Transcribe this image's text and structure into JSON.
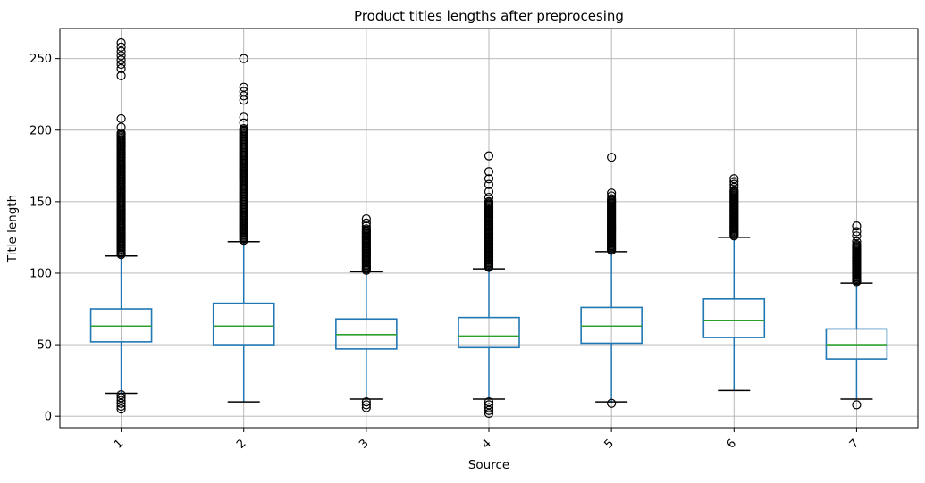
{
  "chart_data": {
    "type": "boxplot",
    "title": "Product titles lengths after preprocesing",
    "xlabel": "Source",
    "ylabel": "Title length",
    "categories": [
      "1",
      "2",
      "3",
      "4",
      "5",
      "6",
      "7"
    ],
    "yticks": [
      0,
      50,
      100,
      150,
      200,
      250
    ],
    "ylim": [
      -8,
      271
    ],
    "grid": true,
    "legend": "none",
    "colors": {
      "box": "#1f77b4",
      "whisker": "#1f77b4",
      "median": "#2ca02c",
      "cap": "#000000",
      "flier": "#000000",
      "grid": "#b0b0b0",
      "frame": "#000000",
      "background": "#ffffff"
    },
    "boxes": [
      {
        "source": "1",
        "whisker_low": 16,
        "q1": 52,
        "median": 63,
        "q3": 75,
        "whisker_high": 112,
        "outliers_above_dense": {
          "min": 113,
          "max": 198,
          "count": 90
        },
        "outliers_above": [
          202,
          208,
          238,
          243,
          246,
          249,
          252,
          255,
          258,
          261
        ],
        "outliers_below": [
          5,
          7,
          9,
          11,
          13,
          15
        ]
      },
      {
        "source": "2",
        "whisker_low": 10,
        "q1": 50,
        "median": 63,
        "q3": 79,
        "whisker_high": 122,
        "outliers_above_dense": {
          "min": 123,
          "max": 201,
          "count": 85
        },
        "outliers_above": [
          205,
          209,
          221,
          224,
          227,
          230,
          250
        ],
        "outliers_below": []
      },
      {
        "source": "3",
        "whisker_low": 12,
        "q1": 47,
        "median": 57,
        "q3": 68,
        "whisker_high": 101,
        "outliers_above_dense": {
          "min": 102,
          "max": 131,
          "count": 35
        },
        "outliers_above": [
          133,
          135,
          138
        ],
        "outliers_below": [
          6,
          8,
          10
        ]
      },
      {
        "source": "4",
        "whisker_low": 12,
        "q1": 48,
        "median": 56,
        "q3": 69,
        "whisker_high": 103,
        "outliers_above_dense": {
          "min": 104,
          "max": 150,
          "count": 55
        },
        "outliers_above": [
          153,
          157,
          162,
          166,
          171,
          182
        ],
        "outliers_below": [
          2,
          4,
          6,
          8,
          10
        ]
      },
      {
        "source": "5",
        "whisker_low": 10,
        "q1": 51,
        "median": 63,
        "q3": 76,
        "whisker_high": 115,
        "outliers_above_dense": {
          "min": 116,
          "max": 152,
          "count": 45
        },
        "outliers_above": [
          154,
          156,
          181
        ],
        "outliers_below": [
          9
        ]
      },
      {
        "source": "6",
        "whisker_low": 18,
        "q1": 55,
        "median": 67,
        "q3": 82,
        "whisker_high": 125,
        "outliers_above_dense": {
          "min": 126,
          "max": 158,
          "count": 40
        },
        "outliers_above": [
          160,
          162,
          164,
          166
        ],
        "outliers_below": []
      },
      {
        "source": "7",
        "whisker_low": 12,
        "q1": 40,
        "median": 50,
        "q3": 61,
        "whisker_high": 93,
        "outliers_above_dense": {
          "min": 94,
          "max": 120,
          "count": 32
        },
        "outliers_above": [
          122,
          126,
          129,
          133
        ],
        "outliers_below": [
          8
        ]
      }
    ]
  }
}
